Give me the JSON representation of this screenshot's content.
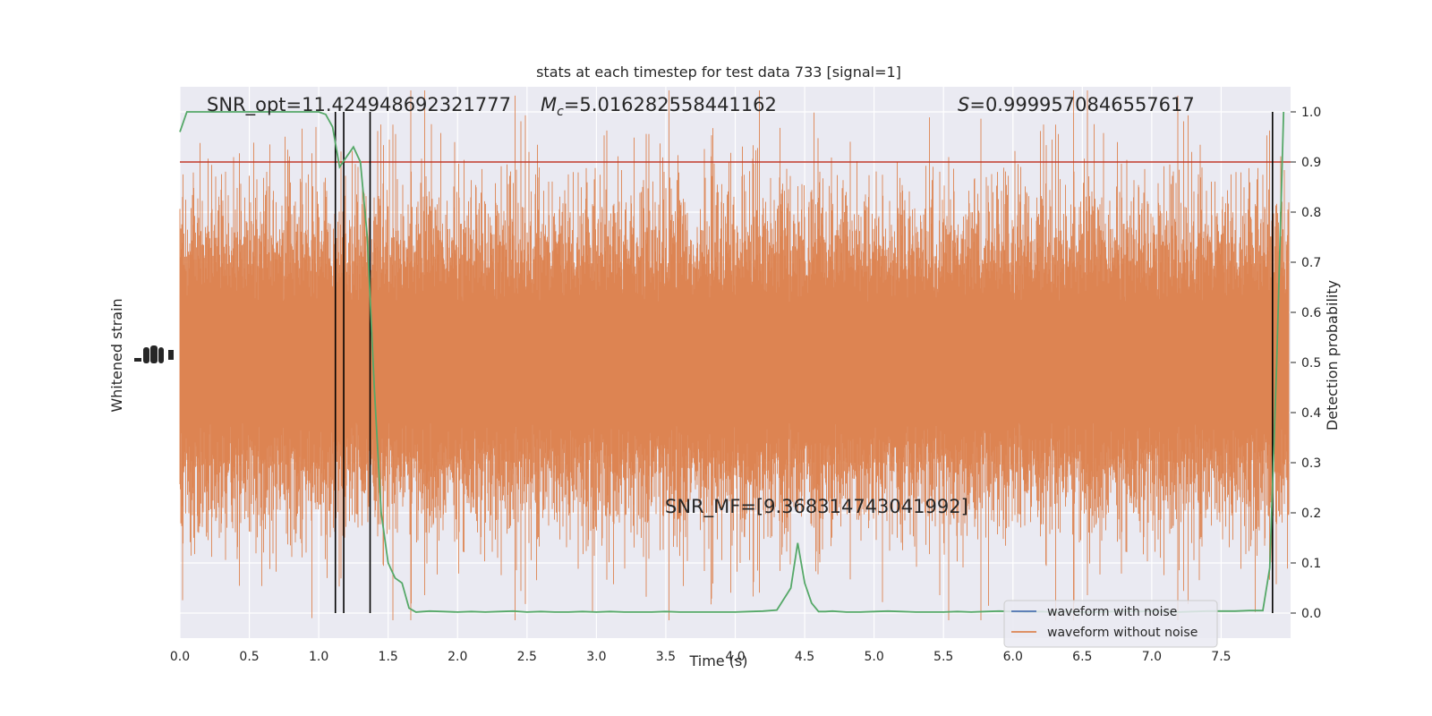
{
  "chart_data": {
    "type": "line",
    "title": "stats at each timestep for test data 733 [signal=1]",
    "xlabel": "Time (s)",
    "ylabel_left": "Whitened strain",
    "ylabel_right": "Detection probability",
    "xlim": [
      0.0,
      7.99
    ],
    "ylim_right": [
      -0.05,
      1.05
    ],
    "xticks": [
      "0.0",
      "0.5",
      "1.0",
      "1.5",
      "2.0",
      "2.5",
      "3.0",
      "3.5",
      "4.0",
      "4.5",
      "5.0",
      "5.5",
      "6.0",
      "6.5",
      "7.0",
      "7.5"
    ],
    "yticks_right": [
      "0.0",
      "0.1",
      "0.2",
      "0.3",
      "0.4",
      "0.5",
      "0.6",
      "0.7",
      "0.8",
      "0.9",
      "1.0"
    ],
    "grid": true,
    "background": "#eaeaf2",
    "annotations": {
      "snr_opt": "SNR_opt=11.424948692321777",
      "mc_symbol": "M",
      "mc_sub": "c",
      "mc_value": "=5.016282558441162",
      "s_symbol": "S",
      "s_value": "=0.9999570846557617",
      "snr_mf": "SNR_MF=[9.368314743041992]"
    },
    "threshold": {
      "y": 0.9,
      "color": "#c0392b"
    },
    "vlines": [
      1.12,
      1.18,
      1.37,
      7.87
    ],
    "series": [
      {
        "name": "waveform with noise",
        "color": "#4c72b0",
        "role": "legend"
      },
      {
        "name": "waveform without noise",
        "color": "#dd8452",
        "role": "strain"
      },
      {
        "role": "probability",
        "color": "#55a868",
        "x": [
          0.0,
          0.05,
          0.1,
          0.2,
          0.3,
          0.4,
          0.5,
          0.6,
          0.7,
          0.8,
          0.9,
          1.0,
          1.05,
          1.1,
          1.15,
          1.2,
          1.25,
          1.3,
          1.35,
          1.4,
          1.45,
          1.5,
          1.55,
          1.6,
          1.65,
          1.7,
          1.75,
          1.8,
          1.9,
          2.0,
          2.1,
          2.2,
          2.3,
          2.4,
          2.5,
          2.6,
          2.7,
          2.8,
          2.9,
          3.0,
          3.1,
          3.2,
          3.3,
          3.4,
          3.5,
          3.6,
          3.7,
          3.8,
          3.9,
          4.0,
          4.1,
          4.2,
          4.3,
          4.4,
          4.45,
          4.5,
          4.55,
          4.6,
          4.65,
          4.7,
          4.8,
          4.9,
          5.0,
          5.1,
          5.2,
          5.3,
          5.4,
          5.5,
          5.6,
          5.7,
          5.8,
          5.9,
          6.0,
          6.1,
          6.2,
          6.3,
          6.4,
          6.5,
          6.6,
          6.7,
          6.8,
          6.9,
          7.0,
          7.1,
          7.2,
          7.3,
          7.4,
          7.5,
          7.6,
          7.7,
          7.8,
          7.85,
          7.9,
          7.95
        ],
        "y": [
          0.96,
          1.0,
          1.0,
          1.0,
          1.0,
          1.0,
          1.0,
          1.0,
          1.0,
          1.0,
          1.0,
          1.0,
          0.995,
          0.97,
          0.89,
          0.91,
          0.93,
          0.9,
          0.75,
          0.45,
          0.2,
          0.1,
          0.07,
          0.06,
          0.01,
          0.002,
          0.003,
          0.004,
          0.003,
          0.002,
          0.003,
          0.002,
          0.003,
          0.004,
          0.002,
          0.003,
          0.002,
          0.002,
          0.003,
          0.002,
          0.003,
          0.002,
          0.002,
          0.002,
          0.003,
          0.002,
          0.002,
          0.002,
          0.002,
          0.002,
          0.003,
          0.004,
          0.006,
          0.05,
          0.14,
          0.06,
          0.02,
          0.003,
          0.003,
          0.004,
          0.002,
          0.002,
          0.003,
          0.004,
          0.003,
          0.002,
          0.002,
          0.002,
          0.003,
          0.002,
          0.003,
          0.004,
          0.003,
          0.002,
          0.003,
          0.002,
          0.003,
          0.002,
          0.002,
          0.003,
          0.004,
          0.003,
          0.004,
          0.003,
          0.002,
          0.003,
          0.004,
          0.004,
          0.004,
          0.005,
          0.005,
          0.09,
          0.5,
          1.0
        ]
      }
    ],
    "legend": {
      "location": "lower-right"
    }
  }
}
